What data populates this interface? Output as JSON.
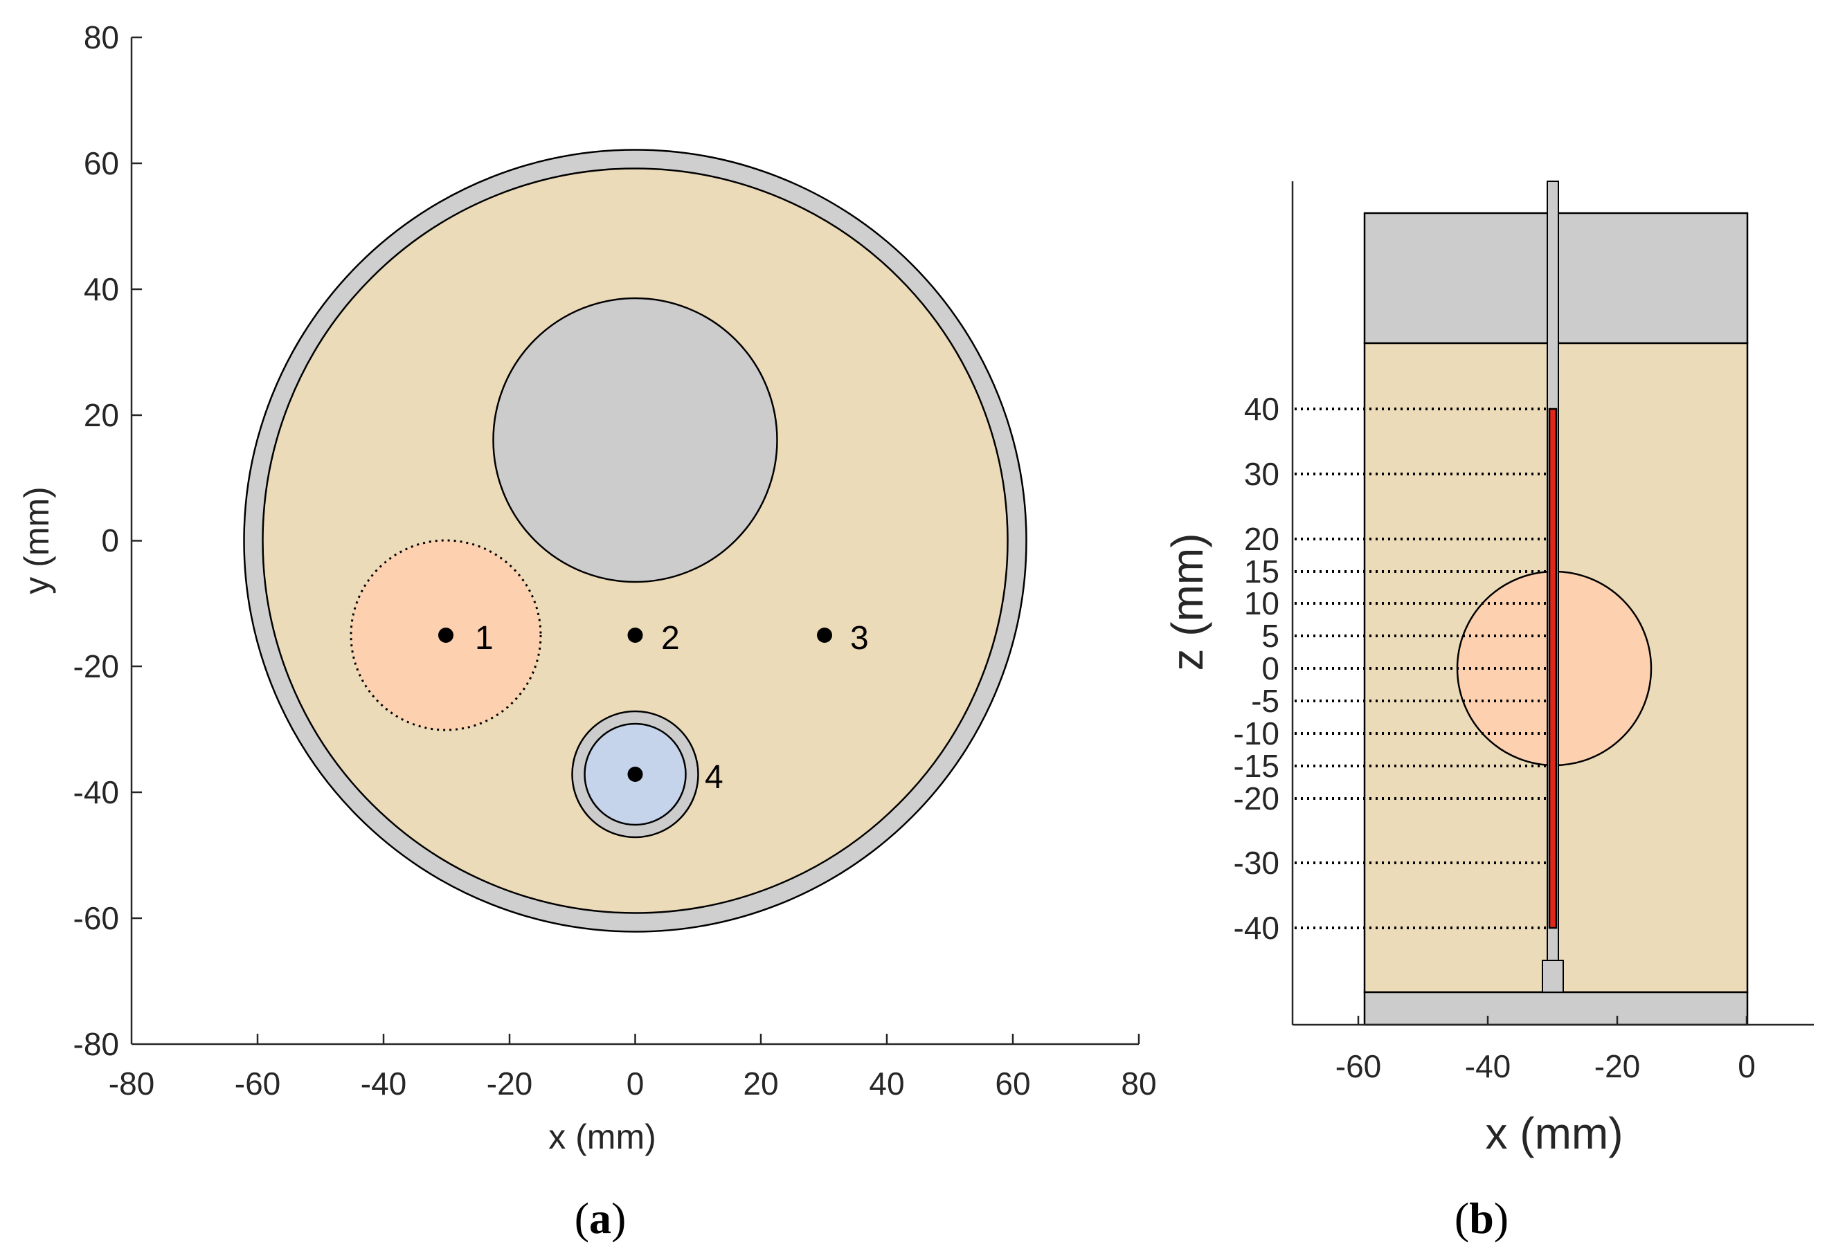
{
  "panel_a": {
    "caption_open": "(",
    "caption_letter": "a",
    "caption_close": ")",
    "xlabel": "x (mm)",
    "ylabel": "y (mm)",
    "xlim": [
      -80,
      80
    ],
    "ylim": [
      -80,
      80
    ],
    "xticks": [
      "-80",
      "-60",
      "-40",
      "-20",
      "0",
      "20",
      "40",
      "60",
      "80"
    ],
    "yticks": [
      "80",
      "60",
      "40",
      "20",
      "0",
      "-20",
      "-40",
      "-60",
      "-80"
    ],
    "outer_ring": {
      "cx": 0,
      "cy": 0,
      "r_outer": 62,
      "r_inner": 59,
      "color": "#cfcfcf"
    },
    "phantom_color": "#ecdbb8",
    "insert_gray": {
      "cx": 0,
      "cy": 16,
      "r": 22.5,
      "color": "#cccccc"
    },
    "tumor": {
      "cx": -30,
      "cy": -15,
      "r": 15,
      "color": "#fdd1b0",
      "border": "dotted"
    },
    "insert_blue": {
      "cx": 0,
      "cy": -37,
      "r_outer": 10,
      "r_inner": 8,
      "color": "#c5d4ea"
    },
    "points": [
      {
        "label": "1",
        "x": -30,
        "y": -15
      },
      {
        "label": "2",
        "x": 0,
        "y": -15
      },
      {
        "label": "3",
        "x": 30,
        "y": -15
      },
      {
        "label": "4",
        "x": 0,
        "y": -37
      }
    ]
  },
  "panel_b": {
    "caption_open": "(",
    "caption_letter": "b",
    "caption_close": ")",
    "xlabel": "x (mm)",
    "ylabel": "z (mm)",
    "xticks": [
      "-60",
      "-40",
      "-20",
      "0"
    ],
    "zticks": [
      "40",
      "30",
      "20",
      "15",
      "10",
      "5",
      "0",
      "-5",
      "-10",
      "-15",
      "-20",
      "-30",
      "-40"
    ],
    "z_values": [
      40,
      30,
      20,
      15,
      10,
      5,
      0,
      -5,
      -10,
      -15,
      -20,
      -30,
      -40
    ],
    "tumor": {
      "cx": -30,
      "cz": 0,
      "r": 15,
      "color": "#fdd1b0"
    },
    "source_color": "#e0271b",
    "source_range": [
      -40,
      40
    ],
    "phantom_color": "#ecdbb8",
    "cap_color": "#cccccc"
  }
}
